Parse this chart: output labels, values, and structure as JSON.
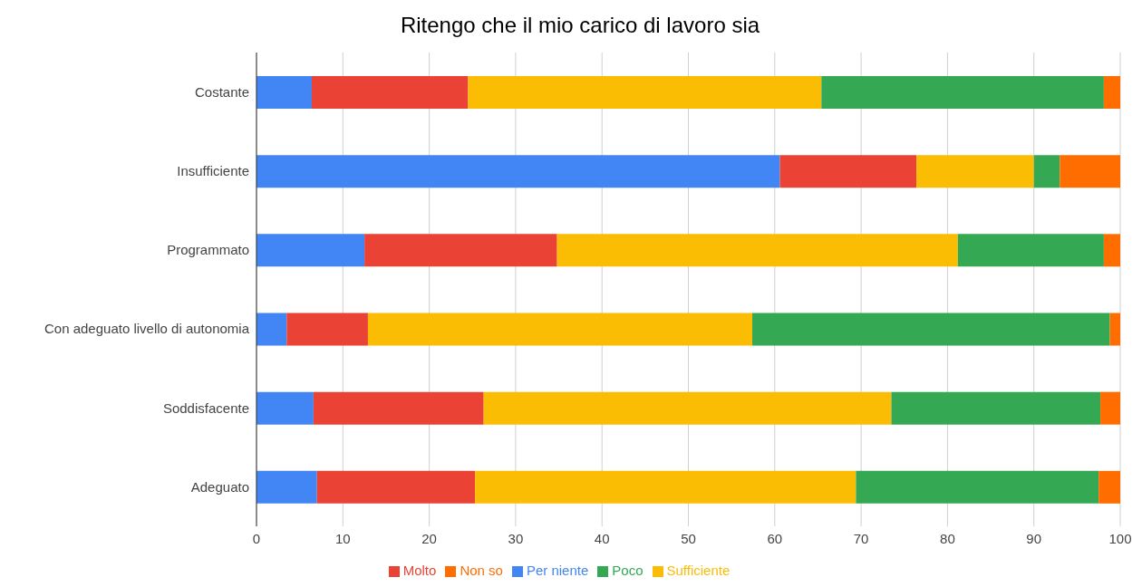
{
  "chart_data": {
    "type": "bar",
    "title": "Ritengo che il mio carico di lavoro sia",
    "orientation": "horizontal",
    "stacked": true,
    "categories": [
      "Costante",
      "Insufficiente",
      "Programmato",
      "Con adeguato livello di autonomia",
      "Soddisfacente",
      "Adeguato"
    ],
    "series": [
      {
        "name": "Per niente",
        "color": "#4285f4",
        "values": [
          6.4,
          60.6,
          12.5,
          3.5,
          6.6,
          7.0
        ]
      },
      {
        "name": "Molto",
        "color": "#ea4335",
        "values": [
          18.1,
          15.8,
          22.3,
          9.4,
          19.7,
          18.3
        ]
      },
      {
        "name": "Sufficiente",
        "color": "#fbbc04",
        "values": [
          40.9,
          13.6,
          46.4,
          44.5,
          47.2,
          44.1
        ]
      },
      {
        "name": "Poco",
        "color": "#34a853",
        "values": [
          32.7,
          3.0,
          16.9,
          41.4,
          24.2,
          28.1
        ]
      },
      {
        "name": "Non so",
        "color": "#ff6d01",
        "values": [
          1.9,
          7.0,
          1.9,
          1.2,
          2.3,
          2.5
        ]
      }
    ],
    "xlim": [
      0,
      100
    ],
    "xticks": [
      0,
      10,
      20,
      30,
      40,
      50,
      60,
      70,
      80,
      90,
      100
    ],
    "grid": "x",
    "legend": "bottom"
  }
}
